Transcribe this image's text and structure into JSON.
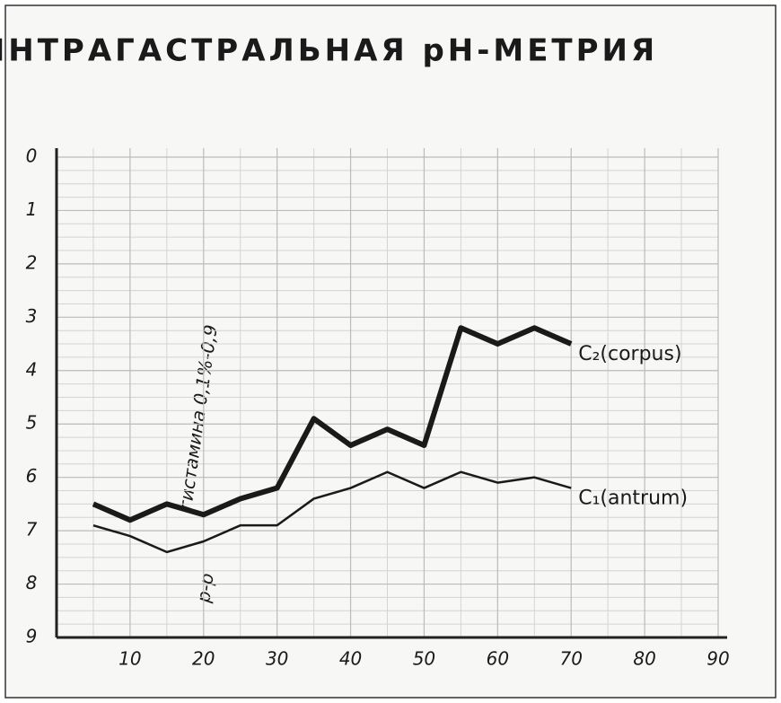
{
  "chart_data": {
    "type": "line",
    "title": "ИНТРАГАСТРАЛЬНАЯ рН-МЕТРИЯ",
    "annotations": [
      "гистамина 0,1%-0,9",
      "р-р"
    ],
    "x": [
      5,
      10,
      15,
      20,
      25,
      30,
      35,
      40,
      45,
      50,
      55,
      60,
      65,
      70
    ],
    "series": [
      {
        "name": "C₂(corpus)",
        "color": "#1a1a1a",
        "values": [
          6.5,
          6.8,
          6.5,
          6.7,
          6.4,
          6.2,
          4.9,
          5.4,
          5.1,
          5.4,
          3.2,
          3.5,
          3.2,
          3.5
        ]
      },
      {
        "name": "C₁(antrum)",
        "color": "#1a1a1a",
        "values": [
          6.9,
          7.1,
          7.4,
          7.2,
          6.9,
          6.9,
          6.4,
          6.2,
          5.9,
          6.2,
          5.9,
          6.1,
          6.0,
          6.2
        ]
      }
    ],
    "xlim": [
      0,
      90
    ],
    "xticks": [
      10,
      20,
      30,
      40,
      50,
      60,
      70,
      80,
      90
    ],
    "ylim": [
      9,
      0
    ],
    "yticks": [
      0,
      1,
      2,
      3,
      4,
      5,
      6,
      7,
      8,
      9
    ],
    "grid": true
  }
}
